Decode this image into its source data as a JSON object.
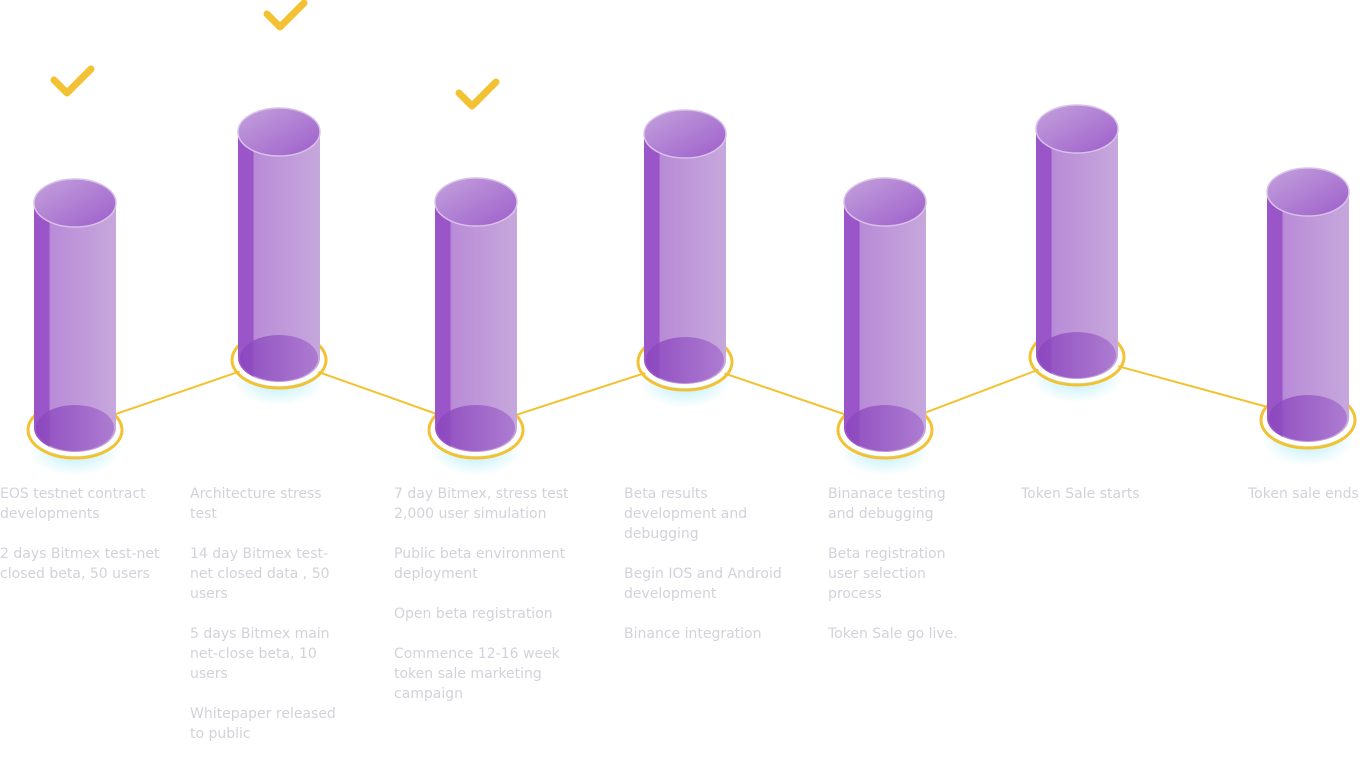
{
  "colors": {
    "cylinder_dark": "#9a55c8",
    "cylinder_light": "#c9a9dd",
    "cylinder_top": "#b07fd2",
    "connector": "#f2c232",
    "check": "#f2c232",
    "glow": "#9fe8f6",
    "text": "#d2d2da"
  },
  "milestones": [
    {
      "completed": true,
      "icon": "check-icon",
      "items": [
        "EOS testnet contract developments",
        "2 days Bitmex test-net closed beta, 50 users"
      ]
    },
    {
      "completed": true,
      "icon": "check-icon",
      "items": [
        "Architecture stress test",
        "14 day Bitmex test-net closed data , 50 users",
        "5 days Bitmex main net-close beta, 10 users",
        "Whitepaper released to public"
      ]
    },
    {
      "completed": true,
      "icon": "check-icon",
      "items": [
        "7 day Bitmex, stress test 2,000 user simulation",
        "Public beta environment deployment",
        "Open beta registration",
        "Commence 12-16 week token sale marketing campaign"
      ]
    },
    {
      "completed": false,
      "items": [
        "Beta results development and debugging",
        "Begin IOS and Android development",
        "Binance integration"
      ]
    },
    {
      "completed": false,
      "items": [
        "Binanace testing and debugging",
        "Beta registration user selection process",
        "Token Sale go live."
      ]
    },
    {
      "completed": false,
      "items": [
        "Token Sale starts"
      ]
    },
    {
      "completed": false,
      "items": [
        "Token sale ends"
      ]
    }
  ]
}
